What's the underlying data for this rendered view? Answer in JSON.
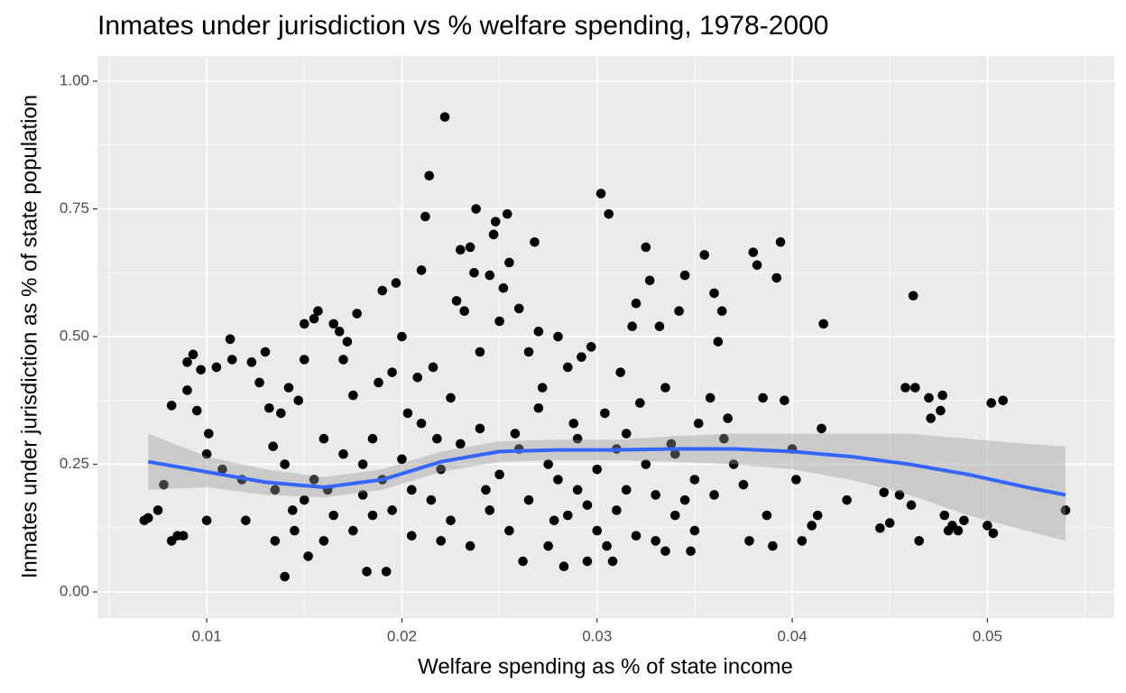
{
  "chart_data": {
    "type": "scatter",
    "title": "Inmates under jurisdiction vs % welfare spending, 1978-2000",
    "x_label": "Welfare spending as % of state income",
    "y_label": "Inmates under jurisdiction as % of state population",
    "xlim": [
      0.0044,
      0.0565
    ],
    "ylim": [
      -0.0512,
      1.0495
    ],
    "xticks": [
      0.01,
      0.02,
      0.03,
      0.04,
      0.05
    ],
    "yticks": [
      {
        "value": 0,
        "label": "0.00"
      },
      0.25,
      {
        "value": 0.5,
        "label": "0.50"
      },
      0.75,
      {
        "value": 1,
        "label": "1.00"
      }
    ],
    "grid": true,
    "color": "#000000",
    "x": [
      0.0068,
      0.007,
      0.0075,
      0.0078,
      0.0082,
      0.0082,
      0.0085,
      0.0088,
      0.009,
      0.009,
      0.0093,
      0.0095,
      0.0097,
      0.01,
      0.01,
      0.0101,
      0.0105,
      0.0108,
      0.0112,
      0.0113,
      0.0118,
      0.012,
      0.0123,
      0.0127,
      0.013,
      0.0132,
      0.0134,
      0.0135,
      0.0138,
      0.014,
      0.0142,
      0.0144,
      0.0147,
      0.015,
      0.015,
      0.0152,
      0.0155,
      0.0157,
      0.016,
      0.0162,
      0.0165,
      0.0168,
      0.017,
      0.0172,
      0.0175,
      0.0177,
      0.018,
      0.0182,
      0.0185,
      0.0188,
      0.019,
      0.0192,
      0.0195,
      0.0197,
      0.02,
      0.0203,
      0.0205,
      0.0208,
      0.021,
      0.0212,
      0.0214,
      0.0216,
      0.0218,
      0.022,
      0.0222,
      0.0225,
      0.0228,
      0.023,
      0.0232,
      0.0235,
      0.0237,
      0.0238,
      0.024,
      0.0243,
      0.0245,
      0.0247,
      0.0248,
      0.025,
      0.0252,
      0.0254,
      0.0255,
      0.0258,
      0.026,
      0.0262,
      0.0265,
      0.0268,
      0.027,
      0.0272,
      0.0275,
      0.0278,
      0.028,
      0.0283,
      0.0285,
      0.0288,
      0.029,
      0.0292,
      0.0295,
      0.0297,
      0.03,
      0.0302,
      0.0304,
      0.0306,
      0.0308,
      0.031,
      0.0312,
      0.0315,
      0.0318,
      0.032,
      0.0322,
      0.0325,
      0.0327,
      0.033,
      0.0332,
      0.0335,
      0.0338,
      0.034,
      0.0342,
      0.0345,
      0.0348,
      0.035,
      0.0352,
      0.0355,
      0.0358,
      0.036,
      0.0362,
      0.0364,
      0.0367,
      0.037,
      0.0375,
      0.0378,
      0.038,
      0.0382,
      0.0385,
      0.0387,
      0.039,
      0.0392,
      0.0394,
      0.0396,
      0.04,
      0.0402,
      0.0405,
      0.041,
      0.0413,
      0.0415,
      0.0416,
      0.0428,
      0.0445,
      0.0447,
      0.045,
      0.0455,
      0.0458,
      0.0461,
      0.0462,
      0.0463,
      0.0465,
      0.047,
      0.0471,
      0.0476,
      0.0477,
      0.0478,
      0.048,
      0.0482,
      0.0485,
      0.0488,
      0.05,
      0.0502,
      0.0503,
      0.0508,
      0.054,
      0.0135,
      0.014,
      0.0145,
      0.015,
      0.0155,
      0.016,
      0.0165,
      0.017,
      0.0175,
      0.018,
      0.0185,
      0.019,
      0.0195,
      0.02,
      0.0205,
      0.021,
      0.0215,
      0.022,
      0.0225,
      0.023,
      0.0235,
      0.024,
      0.0245,
      0.025,
      0.0255,
      0.026,
      0.0265,
      0.027,
      0.0275,
      0.028,
      0.0285,
      0.029,
      0.0295,
      0.03,
      0.0305,
      0.031,
      0.0315,
      0.032,
      0.0325,
      0.033,
      0.0335,
      0.034,
      0.0345,
      0.035,
      0.036,
      0.0365
    ],
    "values": [
      0.14,
      0.145,
      0.16,
      0.21,
      0.365,
      0.1,
      0.11,
      0.11,
      0.395,
      0.45,
      0.465,
      0.355,
      0.435,
      0.14,
      0.27,
      0.31,
      0.44,
      0.24,
      0.495,
      0.455,
      0.22,
      0.14,
      0.45,
      0.41,
      0.47,
      0.36,
      0.285,
      0.1,
      0.35,
      0.03,
      0.4,
      0.16,
      0.375,
      0.455,
      0.525,
      0.07,
      0.535,
      0.55,
      0.3,
      0.2,
      0.525,
      0.51,
      0.455,
      0.49,
      0.385,
      0.545,
      0.25,
      0.04,
      0.15,
      0.41,
      0.59,
      0.04,
      0.43,
      0.605,
      0.5,
      0.35,
      0.2,
      0.42,
      0.63,
      0.735,
      0.815,
      0.44,
      0.3,
      0.1,
      0.93,
      0.38,
      0.57,
      0.67,
      0.55,
      0.675,
      0.625,
      0.75,
      0.47,
      0.2,
      0.62,
      0.7,
      0.725,
      0.53,
      0.595,
      0.74,
      0.645,
      0.31,
      0.555,
      0.06,
      0.47,
      0.685,
      0.51,
      0.4,
      0.25,
      0.14,
      0.5,
      0.05,
      0.44,
      0.33,
      0.2,
      0.46,
      0.06,
      0.48,
      0.12,
      0.78,
      0.35,
      0.74,
      0.06,
      0.28,
      0.43,
      0.2,
      0.52,
      0.565,
      0.37,
      0.675,
      0.61,
      0.1,
      0.52,
      0.4,
      0.29,
      0.15,
      0.55,
      0.62,
      0.08,
      0.22,
      0.33,
      0.66,
      0.38,
      0.585,
      0.49,
      0.55,
      0.34,
      0.25,
      0.21,
      0.1,
      0.665,
      0.64,
      0.38,
      0.15,
      0.09,
      0.615,
      0.685,
      0.375,
      0.28,
      0.22,
      0.1,
      0.13,
      0.15,
      0.32,
      0.525,
      0.18,
      0.125,
      0.195,
      0.135,
      0.19,
      0.4,
      0.17,
      0.58,
      0.4,
      0.1,
      0.38,
      0.34,
      0.355,
      0.385,
      0.15,
      0.12,
      0.13,
      0.12,
      0.14,
      0.13,
      0.37,
      0.115,
      0.375,
      0.16,
      0.2,
      0.25,
      0.12,
      0.18,
      0.22,
      0.1,
      0.15,
      0.27,
      0.12,
      0.19,
      0.3,
      0.22,
      0.16,
      0.26,
      0.11,
      0.33,
      0.18,
      0.24,
      0.14,
      0.29,
      0.09,
      0.32,
      0.16,
      0.23,
      0.12,
      0.28,
      0.18,
      0.36,
      0.09,
      0.22,
      0.15,
      0.3,
      0.17,
      0.24,
      0.09,
      0.16,
      0.31,
      0.11,
      0.25,
      0.19,
      0.08,
      0.27,
      0.18,
      0.12,
      0.19,
      0.3
    ],
    "smooth": {
      "color": "#3366ff",
      "band_color": "#999999",
      "x": [
        0.007,
        0.01,
        0.013,
        0.016,
        0.019,
        0.022,
        0.025,
        0.028,
        0.031,
        0.034,
        0.037,
        0.04,
        0.043,
        0.046,
        0.049,
        0.052,
        0.054
      ],
      "y": [
        0.255,
        0.235,
        0.215,
        0.205,
        0.22,
        0.255,
        0.275,
        0.278,
        0.278,
        0.28,
        0.28,
        0.275,
        0.265,
        0.25,
        0.23,
        0.205,
        0.19
      ],
      "ymin": [
        0.2,
        0.205,
        0.19,
        0.185,
        0.2,
        0.235,
        0.255,
        0.258,
        0.258,
        0.255,
        0.25,
        0.24,
        0.22,
        0.19,
        0.15,
        0.12,
        0.1
      ],
      "ymax": [
        0.31,
        0.265,
        0.24,
        0.225,
        0.24,
        0.275,
        0.295,
        0.298,
        0.298,
        0.305,
        0.31,
        0.31,
        0.31,
        0.31,
        0.3,
        0.29,
        0.285
      ]
    }
  }
}
